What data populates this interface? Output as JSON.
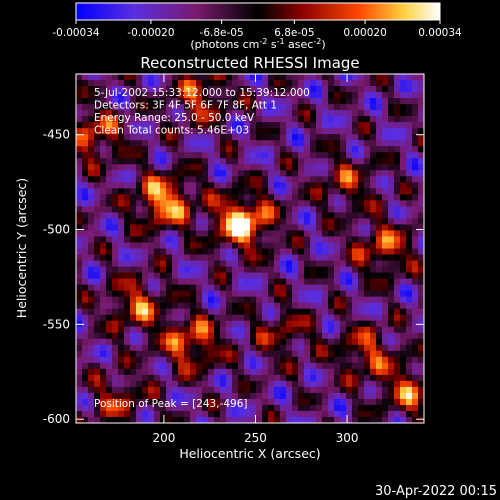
{
  "chart_data": {
    "type": "heatmap",
    "title": "Reconstructed RHESSI Image",
    "xlabel": "Heliocentric X (arcsec)",
    "ylabel": "Heliocentric Y (arcsec)",
    "xlim": [
      152,
      342
    ],
    "ylim": [
      -602,
      -418
    ],
    "xticks": [
      200,
      250,
      300
    ],
    "yticks": [
      -450,
      -500,
      -550,
      -600
    ],
    "colorbar": {
      "ticks": [
        -0.00034,
        -0.0002,
        -6.8e-05,
        6.8e-05,
        0.0002,
        0.00034
      ],
      "tick_labels": [
        "-0.00034",
        "-0.00020",
        "-6.8e-05",
        "6.8e-05",
        "0.00020",
        "0.00034"
      ],
      "label_prefix": "(photons cm",
      "label_exp1": "-2",
      "label_mid": " s",
      "label_exp2": "-1",
      "label_mid2": " asec",
      "label_exp3": "-2",
      "label_suffix": ")",
      "range": [
        -0.00034,
        0.00034
      ],
      "colors": [
        "#0000ff",
        "#6a2bd8",
        "#7a1a6e",
        "#000000",
        "#8b0000",
        "#ff5a00",
        "#ffff80",
        "#ffffff"
      ]
    },
    "annotations": [
      "5-Jul-2002 15:33:12.000 to 15:39:12.000",
      "Detectors: 3F 4F 5F 6F 7F 8F, Att 1",
      "Energy Range: 25.0 - 50.0 keV",
      "Clean    Total counts: 5.46E+03"
    ],
    "peak_label": "Position of Peak = [243,-496]",
    "peak": [
      243,
      -496
    ],
    "sources": [
      {
        "x": 243,
        "y": -496,
        "amp": 1.0
      },
      {
        "x": 200,
        "y": -485,
        "amp": 0.85
      },
      {
        "x": 162,
        "y": -450,
        "amp": 0.6
      },
      {
        "x": 220,
        "y": -430,
        "amp": 0.55
      },
      {
        "x": 185,
        "y": -540,
        "amp": 0.6
      },
      {
        "x": 215,
        "y": -560,
        "amp": 0.7
      },
      {
        "x": 300,
        "y": -475,
        "amp": 0.45
      },
      {
        "x": 320,
        "y": -510,
        "amp": 0.6
      },
      {
        "x": 310,
        "y": -565,
        "amp": 0.55
      },
      {
        "x": 335,
        "y": -585,
        "amp": 0.6
      },
      {
        "x": 175,
        "y": -590,
        "amp": 0.45
      },
      {
        "x": 265,
        "y": -555,
        "amp": 0.4
      }
    ]
  },
  "footer": {
    "timestamp": "30-Apr-2022 00:15"
  }
}
